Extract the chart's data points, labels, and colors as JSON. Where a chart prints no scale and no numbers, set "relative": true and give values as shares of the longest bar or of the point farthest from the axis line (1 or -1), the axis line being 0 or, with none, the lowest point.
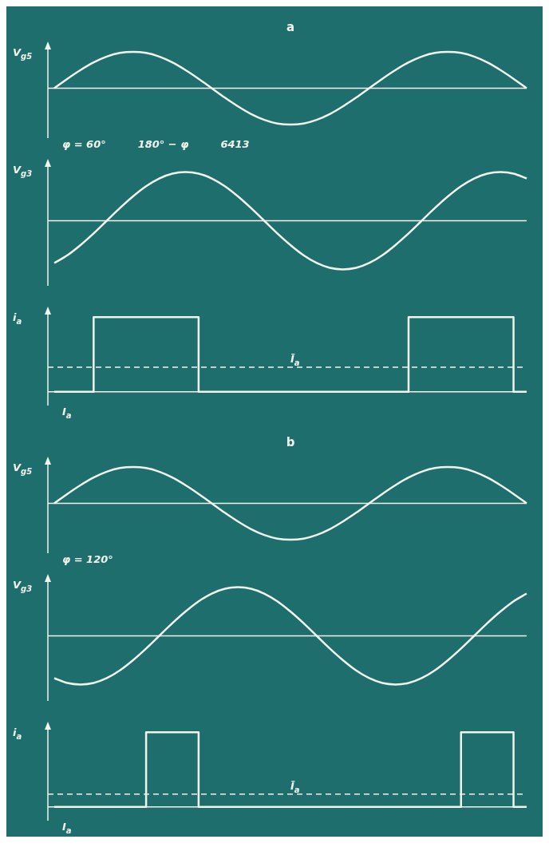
{
  "chart_data": [
    {
      "type": "line",
      "title": "a",
      "ylabel": "V$_{g5}$",
      "relative": true,
      "marker": "none",
      "color": "#f2f4ec",
      "categories": [
        null,
        null,
        null,
        null,
        null,
        null,
        null,
        null,
        null,
        null,
        null,
        null,
        null,
        null,
        null,
        null,
        null,
        null,
        null,
        null,
        null,
        null,
        null,
        null,
        null,
        null,
        null,
        null,
        null,
        null,
        null,
        null,
        null,
        null,
        null,
        null,
        null
      ],
      "values": [
        0,
        0.26,
        0.5,
        0.71,
        0.87,
        0.97,
        1,
        0.97,
        0.87,
        0.71,
        0.5,
        0.26,
        0,
        -0.26,
        -0.5,
        -0.71,
        -0.87,
        -0.97,
        -1,
        -0.97,
        -0.87,
        -0.71,
        -0.5,
        -0.26,
        0,
        0.26,
        0.5,
        0.71,
        0.87,
        0.97,
        1,
        0.97,
        0.87,
        0.71,
        0.5,
        0.26,
        0
      ],
      "annotations": [
        "φ = 60°",
        "180° − φ",
        "6413"
      ]
    },
    {
      "type": "line",
      "ylabel": "V$_{g3}$",
      "relative": true,
      "marker": "none",
      "color": "#f2f4ec",
      "categories": [
        null,
        null,
        null,
        null,
        null,
        null,
        null,
        null,
        null,
        null,
        null,
        null,
        null,
        null,
        null,
        null,
        null,
        null,
        null,
        null,
        null,
        null,
        null,
        null,
        null,
        null,
        null,
        null,
        null,
        null,
        null,
        null,
        null,
        null,
        null,
        null,
        null
      ],
      "values": [
        -0.87,
        -0.71,
        -0.5,
        -0.26,
        0,
        0.26,
        0.5,
        0.71,
        0.87,
        0.97,
        1,
        0.97,
        0.87,
        0.71,
        0.5,
        0.26,
        0,
        -0.26,
        -0.5,
        -0.71,
        -0.87,
        -0.97,
        -1,
        -0.97,
        -0.87,
        -0.71,
        -0.5,
        -0.26,
        0,
        0.26,
        0.5,
        0.71,
        0.87,
        0.97,
        1,
        0.97,
        0.87
      ]
    },
    {
      "type": "step",
      "ylabel": "i$_{a}$",
      "relative": true,
      "marker": "none",
      "color": "#f2f4ec",
      "categories": [
        null,
        null,
        null,
        null,
        null,
        null,
        null,
        null,
        null,
        null,
        null,
        null,
        null,
        null,
        null,
        null,
        null,
        null,
        null,
        null,
        null,
        null,
        null,
        null,
        null,
        null,
        null,
        null,
        null,
        null,
        null,
        null,
        null,
        null,
        null,
        null,
        null
      ],
      "values": [
        0,
        0,
        0,
        0,
        1,
        1,
        1,
        1,
        1,
        1,
        1,
        1,
        0,
        0,
        0,
        0,
        0,
        0,
        0,
        0,
        0,
        0,
        0,
        0,
        0,
        0,
        0,
        0,
        1,
        1,
        1,
        1,
        1,
        1,
        1,
        1,
        0
      ],
      "ref_lines": [
        {
          "axis": "y",
          "value": 0.33,
          "label": "Ī$_{a}$",
          "line_style": "dashed",
          "color": "#f2f4ec"
        }
      ],
      "annotations": [
        "I$_{a}$"
      ]
    },
    {
      "type": "line",
      "title": "b",
      "ylabel": "V$_{g5}$",
      "relative": true,
      "marker": "none",
      "color": "#f2f4ec",
      "categories": [
        null,
        null,
        null,
        null,
        null,
        null,
        null,
        null,
        null,
        null,
        null,
        null,
        null,
        null,
        null,
        null,
        null,
        null,
        null,
        null,
        null,
        null,
        null,
        null,
        null,
        null,
        null,
        null,
        null,
        null,
        null,
        null,
        null,
        null,
        null,
        null,
        null
      ],
      "values": [
        0,
        0.26,
        0.5,
        0.71,
        0.87,
        0.97,
        1,
        0.97,
        0.87,
        0.71,
        0.5,
        0.26,
        0,
        -0.26,
        -0.5,
        -0.71,
        -0.87,
        -0.97,
        -1,
        -0.97,
        -0.87,
        -0.71,
        -0.5,
        -0.26,
        0,
        0.26,
        0.5,
        0.71,
        0.87,
        0.97,
        1,
        0.97,
        0.87,
        0.71,
        0.5,
        0.26,
        0
      ],
      "annotations": [
        "φ = 120°"
      ]
    },
    {
      "type": "line",
      "ylabel": "V$_{g3}$",
      "relative": true,
      "marker": "none",
      "color": "#f2f4ec",
      "categories": [
        null,
        null,
        null,
        null,
        null,
        null,
        null,
        null,
        null,
        null,
        null,
        null,
        null,
        null,
        null,
        null,
        null,
        null,
        null,
        null,
        null,
        null,
        null,
        null,
        null,
        null,
        null,
        null,
        null,
        null,
        null,
        null,
        null,
        null,
        null,
        null,
        null
      ],
      "values": [
        -0.87,
        -0.97,
        -1,
        -0.97,
        -0.87,
        -0.71,
        -0.5,
        -0.26,
        0,
        0.26,
        0.5,
        0.71,
        0.87,
        0.97,
        1,
        0.97,
        0.87,
        0.71,
        0.5,
        0.26,
        0,
        -0.26,
        -0.5,
        -0.71,
        -0.87,
        -0.97,
        -1,
        -0.97,
        -0.87,
        -0.71,
        -0.5,
        -0.26,
        0,
        0.26,
        0.5,
        0.71,
        0.87
      ]
    },
    {
      "type": "step",
      "ylabel": "i$_{a}$",
      "relative": true,
      "marker": "none",
      "color": "#f2f4ec",
      "categories": [
        null,
        null,
        null,
        null,
        null,
        null,
        null,
        null,
        null,
        null,
        null,
        null,
        null,
        null,
        null,
        null,
        null,
        null,
        null,
        null,
        null,
        null,
        null,
        null,
        null,
        null,
        null,
        null,
        null,
        null,
        null,
        null,
        null,
        null,
        null,
        null,
        null
      ],
      "values": [
        0,
        0,
        0,
        0,
        0,
        0,
        0,
        0,
        1,
        1,
        1,
        1,
        0,
        0,
        0,
        0,
        0,
        0,
        0,
        0,
        0,
        0,
        0,
        0,
        0,
        0,
        0,
        0,
        0,
        0,
        0,
        0,
        1,
        1,
        1,
        1,
        0
      ],
      "ref_lines": [
        {
          "axis": "y",
          "value": 0.17,
          "label": "Ī$_{a}$",
          "line_style": "dashed",
          "color": "#f2f4ec"
        }
      ],
      "annotations": [
        "I$_{a}$"
      ]
    }
  ]
}
